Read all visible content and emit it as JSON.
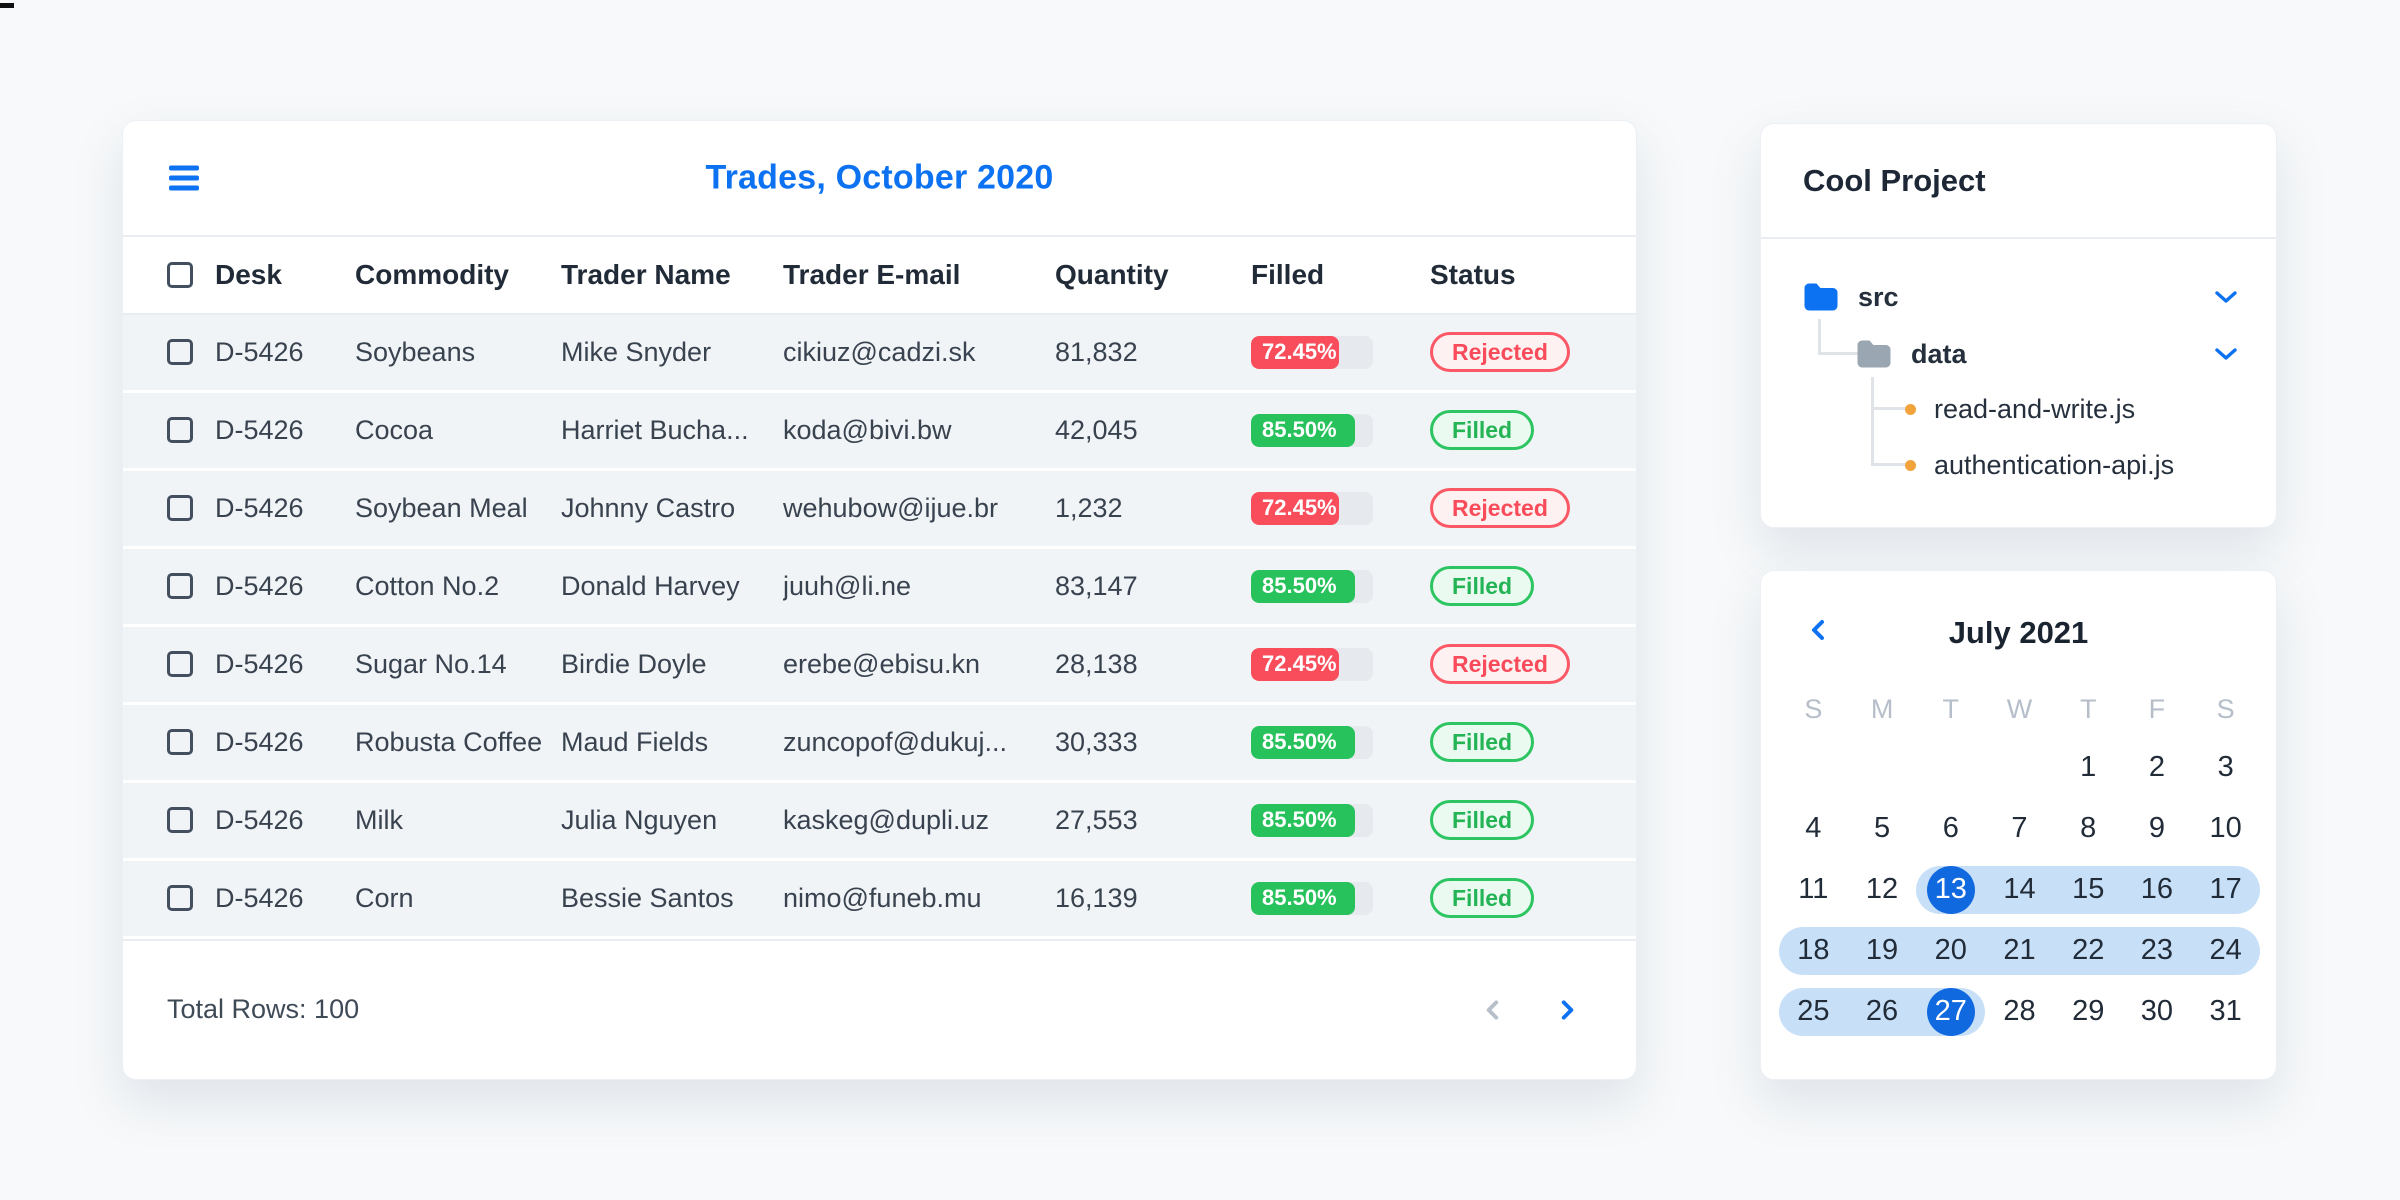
{
  "colors": {
    "accent_blue": "#0d72f2",
    "selected_day_blue": "#1169df",
    "range_band_blue": "#c7e0f8",
    "progress_red": "#fa4d5c",
    "progress_green": "#28c25c",
    "row_bg": "#f1f4f7",
    "folder_blue": "#0d72f2",
    "folder_grey": "#9aa6b2",
    "file_dot_orange": "#f2a33c"
  },
  "trades_panel": {
    "menu_icon": "hamburger-icon",
    "title": "Trades, October 2020",
    "columns": [
      "Desk",
      "Commodity",
      "Trader Name",
      "Trader E-mail",
      "Quantity",
      "Filled",
      "Status"
    ],
    "rows": [
      {
        "desk": "D-5426",
        "commodity": "Soybeans",
        "trader": "Mike Snyder",
        "email": "cikiuz@cadzi.sk",
        "quantity": "81,832",
        "filled_pct": 72.45,
        "filled_label": "72.45%",
        "status": "Rejected"
      },
      {
        "desk": "D-5426",
        "commodity": "Cocoa",
        "trader": "Harriet Bucha...",
        "email": "koda@bivi.bw",
        "quantity": "42,045",
        "filled_pct": 85.5,
        "filled_label": "85.50%",
        "status": "Filled"
      },
      {
        "desk": "D-5426",
        "commodity": "Soybean Meal",
        "trader": "Johnny Castro",
        "email": "wehubow@ijue.br",
        "quantity": "1,232",
        "filled_pct": 72.45,
        "filled_label": "72.45%",
        "status": "Rejected"
      },
      {
        "desk": "D-5426",
        "commodity": "Cotton No.2",
        "trader": "Donald Harvey",
        "email": "juuh@li.ne",
        "quantity": "83,147",
        "filled_pct": 85.5,
        "filled_label": "85.50%",
        "status": "Filled"
      },
      {
        "desk": "D-5426",
        "commodity": "Sugar No.14",
        "trader": "Birdie Doyle",
        "email": "erebe@ebisu.kn",
        "quantity": "28,138",
        "filled_pct": 72.45,
        "filled_label": "72.45%",
        "status": "Rejected"
      },
      {
        "desk": "D-5426",
        "commodity": "Robusta Coffee",
        "trader": "Maud Fields",
        "email": "zuncopof@dukuj...",
        "quantity": "30,333",
        "filled_pct": 85.5,
        "filled_label": "85.50%",
        "status": "Filled"
      },
      {
        "desk": "D-5426",
        "commodity": "Milk",
        "trader": "Julia Nguyen",
        "email": "kaskeg@dupli.uz",
        "quantity": "27,553",
        "filled_pct": 85.5,
        "filled_label": "85.50%",
        "status": "Filled"
      },
      {
        "desk": "D-5426",
        "commodity": "Corn",
        "trader": "Bessie Santos",
        "email": "nimo@funeb.mu",
        "quantity": "16,139",
        "filled_pct": 85.5,
        "filled_label": "85.50%",
        "status": "Filled"
      }
    ],
    "footer": {
      "total_rows_label": "Total Rows: 100",
      "prev_icon": "chevron-left-icon",
      "next_icon": "chevron-right-icon"
    }
  },
  "project_panel": {
    "title": "Cool Project",
    "tree": {
      "folder_src": {
        "label": "src",
        "icon": "folder-icon",
        "expand_icon": "chevron-down-icon"
      },
      "folder_data": {
        "label": "data",
        "icon": "folder-icon",
        "expand_icon": "chevron-down-icon"
      },
      "files": [
        {
          "label": "read-and-write.js",
          "icon": "file-dot-icon"
        },
        {
          "label": "authentication-api.js",
          "icon": "file-dot-icon"
        }
      ]
    }
  },
  "calendar": {
    "nav_prev_icon": "chevron-left-icon",
    "month_label": "July 2021",
    "weekday_headers": [
      "S",
      "M",
      "T",
      "W",
      "T",
      "F",
      "S"
    ],
    "weeks": [
      [
        null,
        null,
        null,
        null,
        1,
        2,
        3
      ],
      [
        4,
        5,
        6,
        7,
        8,
        9,
        10
      ],
      [
        11,
        12,
        13,
        14,
        15,
        16,
        17
      ],
      [
        18,
        19,
        20,
        21,
        22,
        23,
        24
      ],
      [
        25,
        26,
        27,
        28,
        29,
        30,
        31
      ]
    ],
    "range_start": 13,
    "range_end": 27
  }
}
